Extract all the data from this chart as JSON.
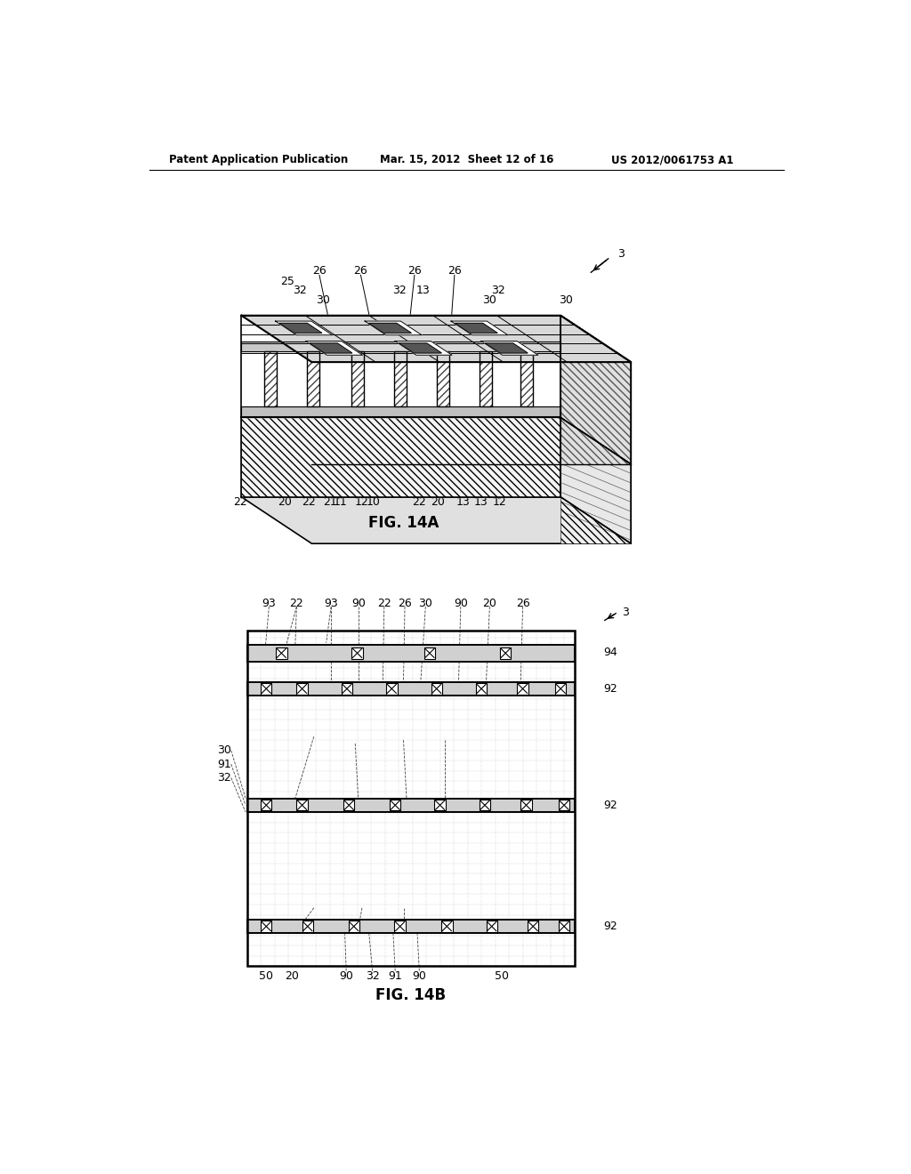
{
  "page_title_left": "Patent Application Publication",
  "page_title_mid": "Mar. 15, 2012  Sheet 12 of 16",
  "page_title_right": "US 2012/0061753 A1",
  "fig14a_title": "FIG. 14A",
  "fig14b_title": "FIG. 14B",
  "background": "#ffffff"
}
